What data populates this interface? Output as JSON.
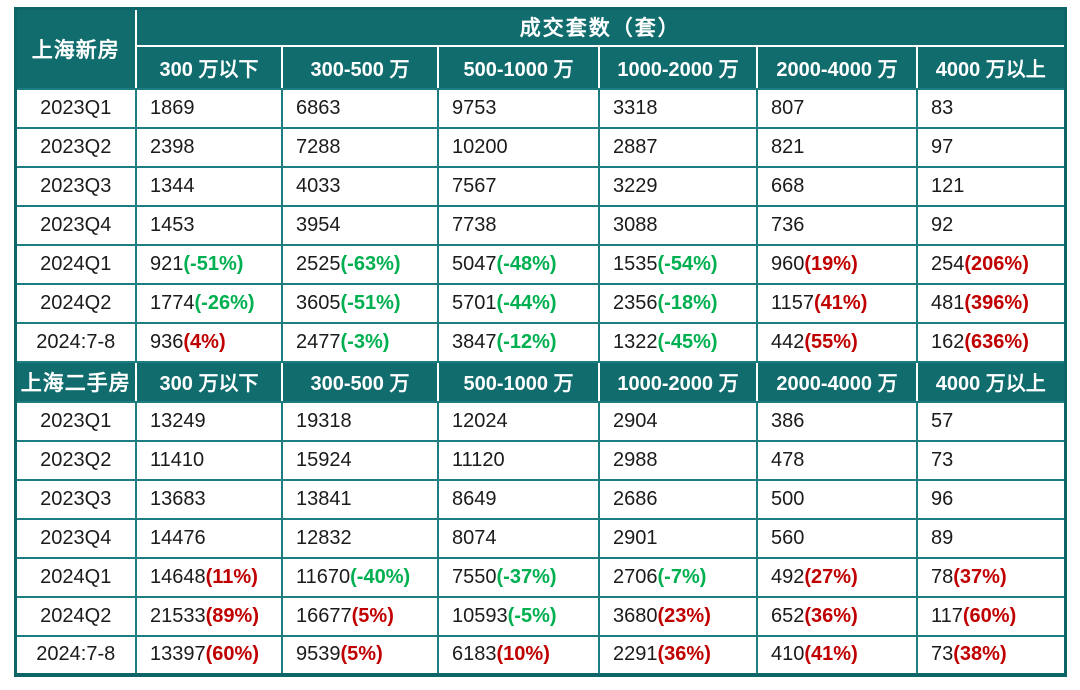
{
  "chart_data": {
    "type": "table",
    "title": "成交套数（套）",
    "colors": {
      "header_bg": "#116C6E",
      "border": "#1C7E80",
      "highlight_bg": "#FAC8C8",
      "positive": "#C00000",
      "negative": "#00B050"
    },
    "sections": [
      {
        "row_header": "上海新房",
        "columns": [
          "300 万以下",
          "300-500 万",
          "500-1000 万",
          "1000-2000 万",
          "2000-4000 万",
          "4000 万以上"
        ],
        "rows": [
          {
            "period": "2023Q1",
            "cells": [
              {
                "v": "1869"
              },
              {
                "v": "6863"
              },
              {
                "v": "9753"
              },
              {
                "v": "3318",
                "hl": true
              },
              {
                "v": "807"
              },
              {
                "v": "83"
              }
            ]
          },
          {
            "period": "2023Q2",
            "cells": [
              {
                "v": "2398",
                "hl": true
              },
              {
                "v": "7288",
                "hl": true
              },
              {
                "v": "10200",
                "hl": true
              },
              {
                "v": "2887"
              },
              {
                "v": "821"
              },
              {
                "v": "97"
              }
            ]
          },
          {
            "period": "2023Q3",
            "cells": [
              {
                "v": "1344"
              },
              {
                "v": "4033"
              },
              {
                "v": "7567"
              },
              {
                "v": "3229"
              },
              {
                "v": "668"
              },
              {
                "v": "121"
              }
            ]
          },
          {
            "period": "2023Q4",
            "cells": [
              {
                "v": "1453"
              },
              {
                "v": "3954"
              },
              {
                "v": "7738"
              },
              {
                "v": "3088"
              },
              {
                "v": "736"
              },
              {
                "v": "92"
              }
            ]
          },
          {
            "period": "2024Q1",
            "cells": [
              {
                "v": "921",
                "p": "(-51%)"
              },
              {
                "v": "2525",
                "p": "(-63%)"
              },
              {
                "v": "5047",
                "p": "(-48%)"
              },
              {
                "v": "1535",
                "p": "(-54%)"
              },
              {
                "v": "960",
                "p": "(19%)"
              },
              {
                "v": "254",
                "p": "(206%)"
              }
            ]
          },
          {
            "period": "2024Q2",
            "cells": [
              {
                "v": "1774",
                "p": "(-26%)"
              },
              {
                "v": "3605",
                "p": "(-51%)"
              },
              {
                "v": "5701",
                "p": "(-44%)"
              },
              {
                "v": "2356",
                "p": "(-18%)"
              },
              {
                "v": "1157",
                "p": "(41%)",
                "hl": true
              },
              {
                "v": "481",
                "p": "(396%)",
                "hl": true
              }
            ]
          },
          {
            "period": "2024:7-8",
            "cells": [
              {
                "v": "936",
                "p": "(4%)"
              },
              {
                "v": "2477",
                "p": "(-3%)"
              },
              {
                "v": "3847",
                "p": "(-12%)"
              },
              {
                "v": "1322",
                "p": "(-45%)"
              },
              {
                "v": "442",
                "p": "(55%)"
              },
              {
                "v": "162",
                "p": "(636%)"
              }
            ]
          }
        ]
      },
      {
        "row_header": "上海二手房",
        "columns": [
          "300 万以下",
          "300-500 万",
          "500-1000 万",
          "1000-2000 万",
          "2000-4000 万",
          "4000 万以上"
        ],
        "rows": [
          {
            "period": "2023Q1",
            "cells": [
              {
                "v": "13249"
              },
              {
                "v": "19318",
                "hl": true
              },
              {
                "v": "12024",
                "hl": true
              },
              {
                "v": "2904"
              },
              {
                "v": "386"
              },
              {
                "v": "57"
              }
            ]
          },
          {
            "period": "2023Q2",
            "cells": [
              {
                "v": "11410"
              },
              {
                "v": "15924"
              },
              {
                "v": "11120"
              },
              {
                "v": "2988"
              },
              {
                "v": "478"
              },
              {
                "v": "73"
              }
            ]
          },
          {
            "period": "2023Q3",
            "cells": [
              {
                "v": "13683"
              },
              {
                "v": "13841"
              },
              {
                "v": "8649"
              },
              {
                "v": "2686"
              },
              {
                "v": "500"
              },
              {
                "v": "96"
              }
            ]
          },
          {
            "period": "2023Q4",
            "cells": [
              {
                "v": "14476"
              },
              {
                "v": "12832"
              },
              {
                "v": "8074"
              },
              {
                "v": "2901"
              },
              {
                "v": "560"
              },
              {
                "v": "89"
              }
            ]
          },
          {
            "period": "2024Q1",
            "cells": [
              {
                "v": "14648",
                "p": "(11%)"
              },
              {
                "v": "11670",
                "p": "(-40%)"
              },
              {
                "v": "7550",
                "p": "(-37%)"
              },
              {
                "v": "2706",
                "p": "(-7%)"
              },
              {
                "v": "492",
                "p": "(27%)"
              },
              {
                "v": "78",
                "p": "(37%)"
              }
            ]
          },
          {
            "period": "2024Q2",
            "cells": [
              {
                "v": "21533",
                "p": "(89%)",
                "hl": true
              },
              {
                "v": "16677",
                "p": "(5%)"
              },
              {
                "v": "10593",
                "p": "(-5%)"
              },
              {
                "v": "3680",
                "p": "(23%)",
                "hl": true
              },
              {
                "v": "652",
                "p": "(36%)",
                "hl": true
              },
              {
                "v": "117",
                "p": "(60%)",
                "hl": true
              }
            ]
          },
          {
            "period": "2024:7-8",
            "cells": [
              {
                "v": "13397",
                "p": "(60%)"
              },
              {
                "v": "9539",
                "p": "(5%)"
              },
              {
                "v": "6183",
                "p": "(10%)"
              },
              {
                "v": "2291",
                "p": "(36%)"
              },
              {
                "v": "410",
                "p": "(41%)"
              },
              {
                "v": "73",
                "p": "(38%)"
              }
            ]
          }
        ]
      }
    ]
  }
}
